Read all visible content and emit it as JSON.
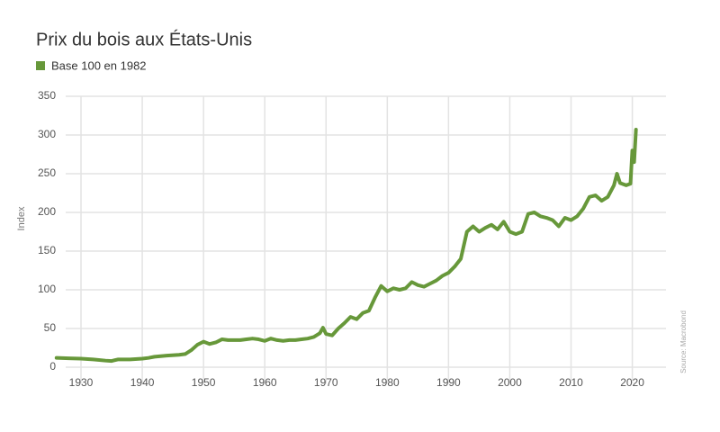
{
  "chart_data": {
    "type": "line",
    "title": "Prix du bois aux États-Unis",
    "y_label": "Index",
    "source": "Source: Macrobond",
    "x": [
      1926,
      1928,
      1930,
      1932,
      1934,
      1935,
      1936,
      1938,
      1940,
      1941,
      1942,
      1944,
      1946,
      1947,
      1948,
      1949,
      1950,
      1951,
      1952,
      1953,
      1954,
      1956,
      1957,
      1958,
      1959,
      1960,
      1961,
      1962,
      1963,
      1964,
      1965,
      1966,
      1967,
      1968,
      1969,
      1969.5,
      1970,
      1971,
      1972,
      1973,
      1974,
      1975,
      1976,
      1977,
      1978,
      1979,
      1980,
      1981,
      1982,
      1983,
      1984,
      1985,
      1986,
      1987,
      1988,
      1989,
      1990,
      1991,
      1992,
      1993,
      1994,
      1995,
      1996,
      1997,
      1998,
      1999,
      2000,
      2001,
      2002,
      2003,
      2004,
      2005,
      2006,
      2007,
      2008,
      2009,
      2010,
      2011,
      2012,
      2013,
      2014,
      2015,
      2016,
      2017,
      2017.5,
      2018,
      2019,
      2019.7,
      2020,
      2020.3,
      2020.6
    ],
    "series": [
      {
        "name": "Base 100 en 1982",
        "color": "#67983a",
        "values": [
          12,
          11.5,
          11,
          10,
          8.5,
          8,
          10,
          10,
          11,
          12,
          13.5,
          15,
          16,
          17,
          22,
          29,
          33,
          30,
          32,
          36,
          35,
          35,
          36,
          37,
          36,
          34,
          37,
          35,
          34,
          35,
          35,
          36,
          37,
          39,
          44,
          51,
          43,
          41,
          50,
          57,
          65,
          62,
          70,
          73,
          90,
          105,
          98,
          102,
          100,
          102,
          110,
          106,
          104,
          108,
          112,
          118,
          122,
          130,
          140,
          175,
          182,
          175,
          180,
          184,
          178,
          188,
          175,
          172,
          175,
          198,
          200,
          195,
          193,
          190,
          182,
          193,
          190,
          195,
          205,
          220,
          222,
          215,
          220,
          235,
          250,
          238,
          235,
          237,
          280,
          265,
          307
        ]
      }
    ],
    "xlim": [
      1927.5,
      2025.5
    ],
    "xticks": [
      1930,
      1940,
      1950,
      1960,
      1970,
      1980,
      1990,
      2000,
      2010,
      2020
    ],
    "ylim": [
      0,
      350
    ],
    "yticks": [
      0,
      50,
      100,
      150,
      200,
      250,
      300,
      350
    ],
    "grid": true
  }
}
